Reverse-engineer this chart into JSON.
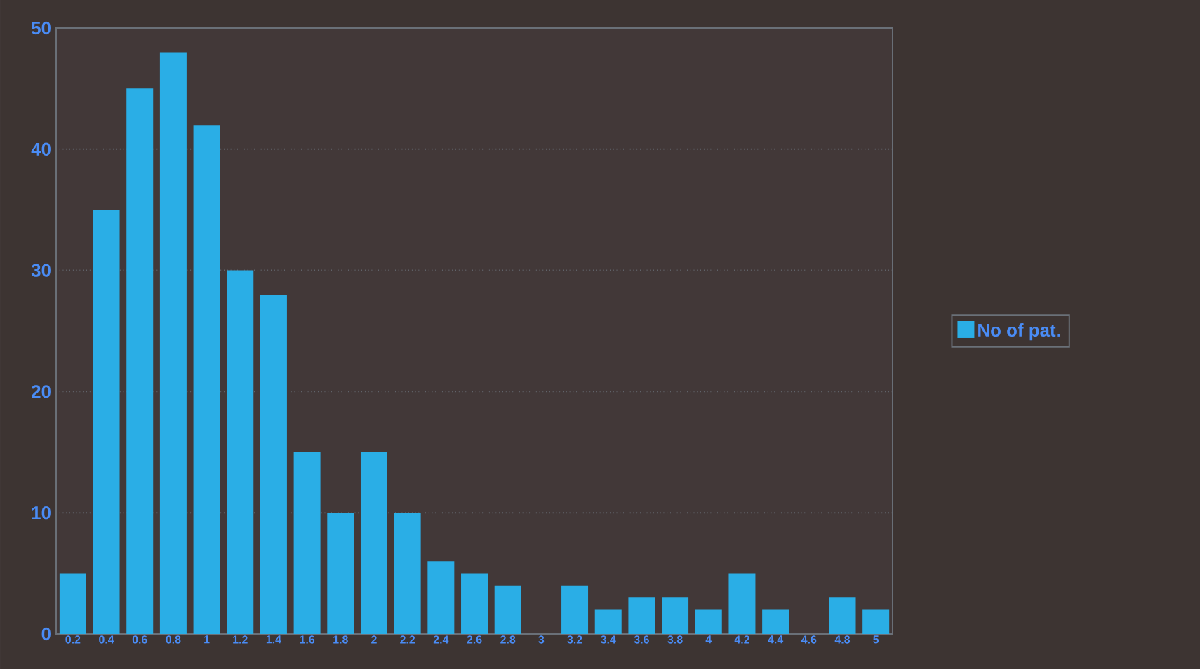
{
  "chart_data": {
    "type": "bar",
    "categories": [
      "0.2",
      "0.4",
      "0.6",
      "0.8",
      "1",
      "1.2",
      "1.4",
      "1.6",
      "1.8",
      "2",
      "2.2",
      "2.4",
      "2.6",
      "2.8",
      "3",
      "3.2",
      "3.4",
      "3.6",
      "3.8",
      "4",
      "4.2",
      "4.4",
      "4.6",
      "4.8",
      "5"
    ],
    "series": [
      {
        "name": "No of pat.",
        "color": "#2aaee6",
        "values": [
          5,
          35,
          45,
          48,
          42,
          30,
          28,
          15,
          10,
          15,
          10,
          6,
          5,
          4,
          0,
          4,
          2,
          3,
          3,
          2,
          5,
          2,
          0,
          3,
          2
        ]
      }
    ],
    "ylim": [
      0,
      50
    ],
    "yticks": [
      0,
      10,
      20,
      30,
      40,
      50
    ],
    "grid": "y",
    "legend": "right"
  }
}
